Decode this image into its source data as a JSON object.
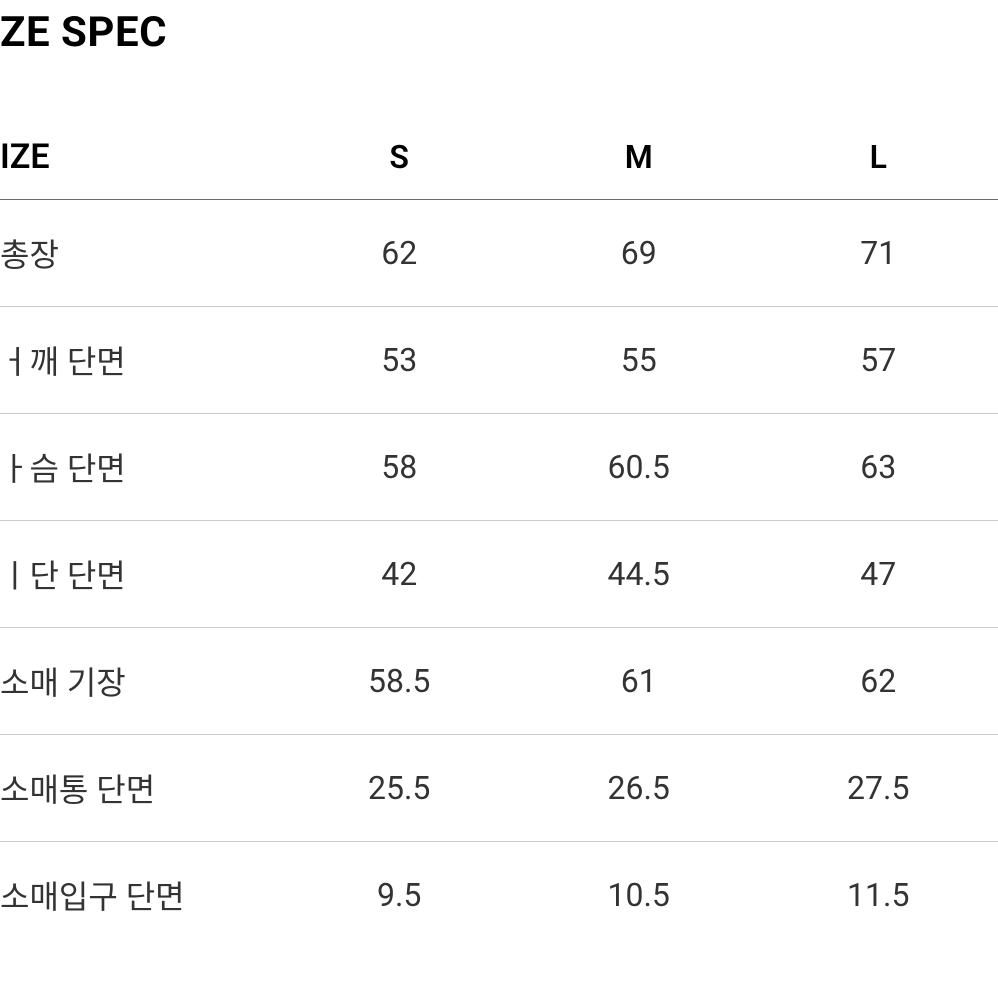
{
  "title": "ZE SPEC",
  "table": {
    "header_label": "IZE",
    "size_columns": [
      "S",
      "M",
      "L"
    ],
    "rows": [
      {
        "label": "총장",
        "values": [
          "62",
          "69",
          "71"
        ]
      },
      {
        "label": "ㅓ깨 단면",
        "values": [
          "53",
          "55",
          "57"
        ]
      },
      {
        "label": "ㅏ슴 단면",
        "values": [
          "58",
          "60.5",
          "63"
        ]
      },
      {
        "label": "ㅣ단 단면",
        "values": [
          "42",
          "44.5",
          "47"
        ]
      },
      {
        "label": "소매 기장",
        "values": [
          "58.5",
          "61",
          "62"
        ]
      },
      {
        "label": "소매통 단면",
        "values": [
          "25.5",
          "26.5",
          "27.5"
        ]
      },
      {
        "label": "소매입구 단면",
        "values": [
          "9.5",
          "10.5",
          "11.5"
        ]
      }
    ]
  },
  "colors": {
    "background": "#ffffff",
    "text": "#000000",
    "body_text": "#333333",
    "header_border": "#6a6a6a",
    "row_border": "#cccccc"
  },
  "typography": {
    "title_fontsize": 42,
    "title_weight": 700,
    "header_fontsize": 34,
    "header_weight": 600,
    "cell_fontsize": 32,
    "cell_weight": 400
  }
}
